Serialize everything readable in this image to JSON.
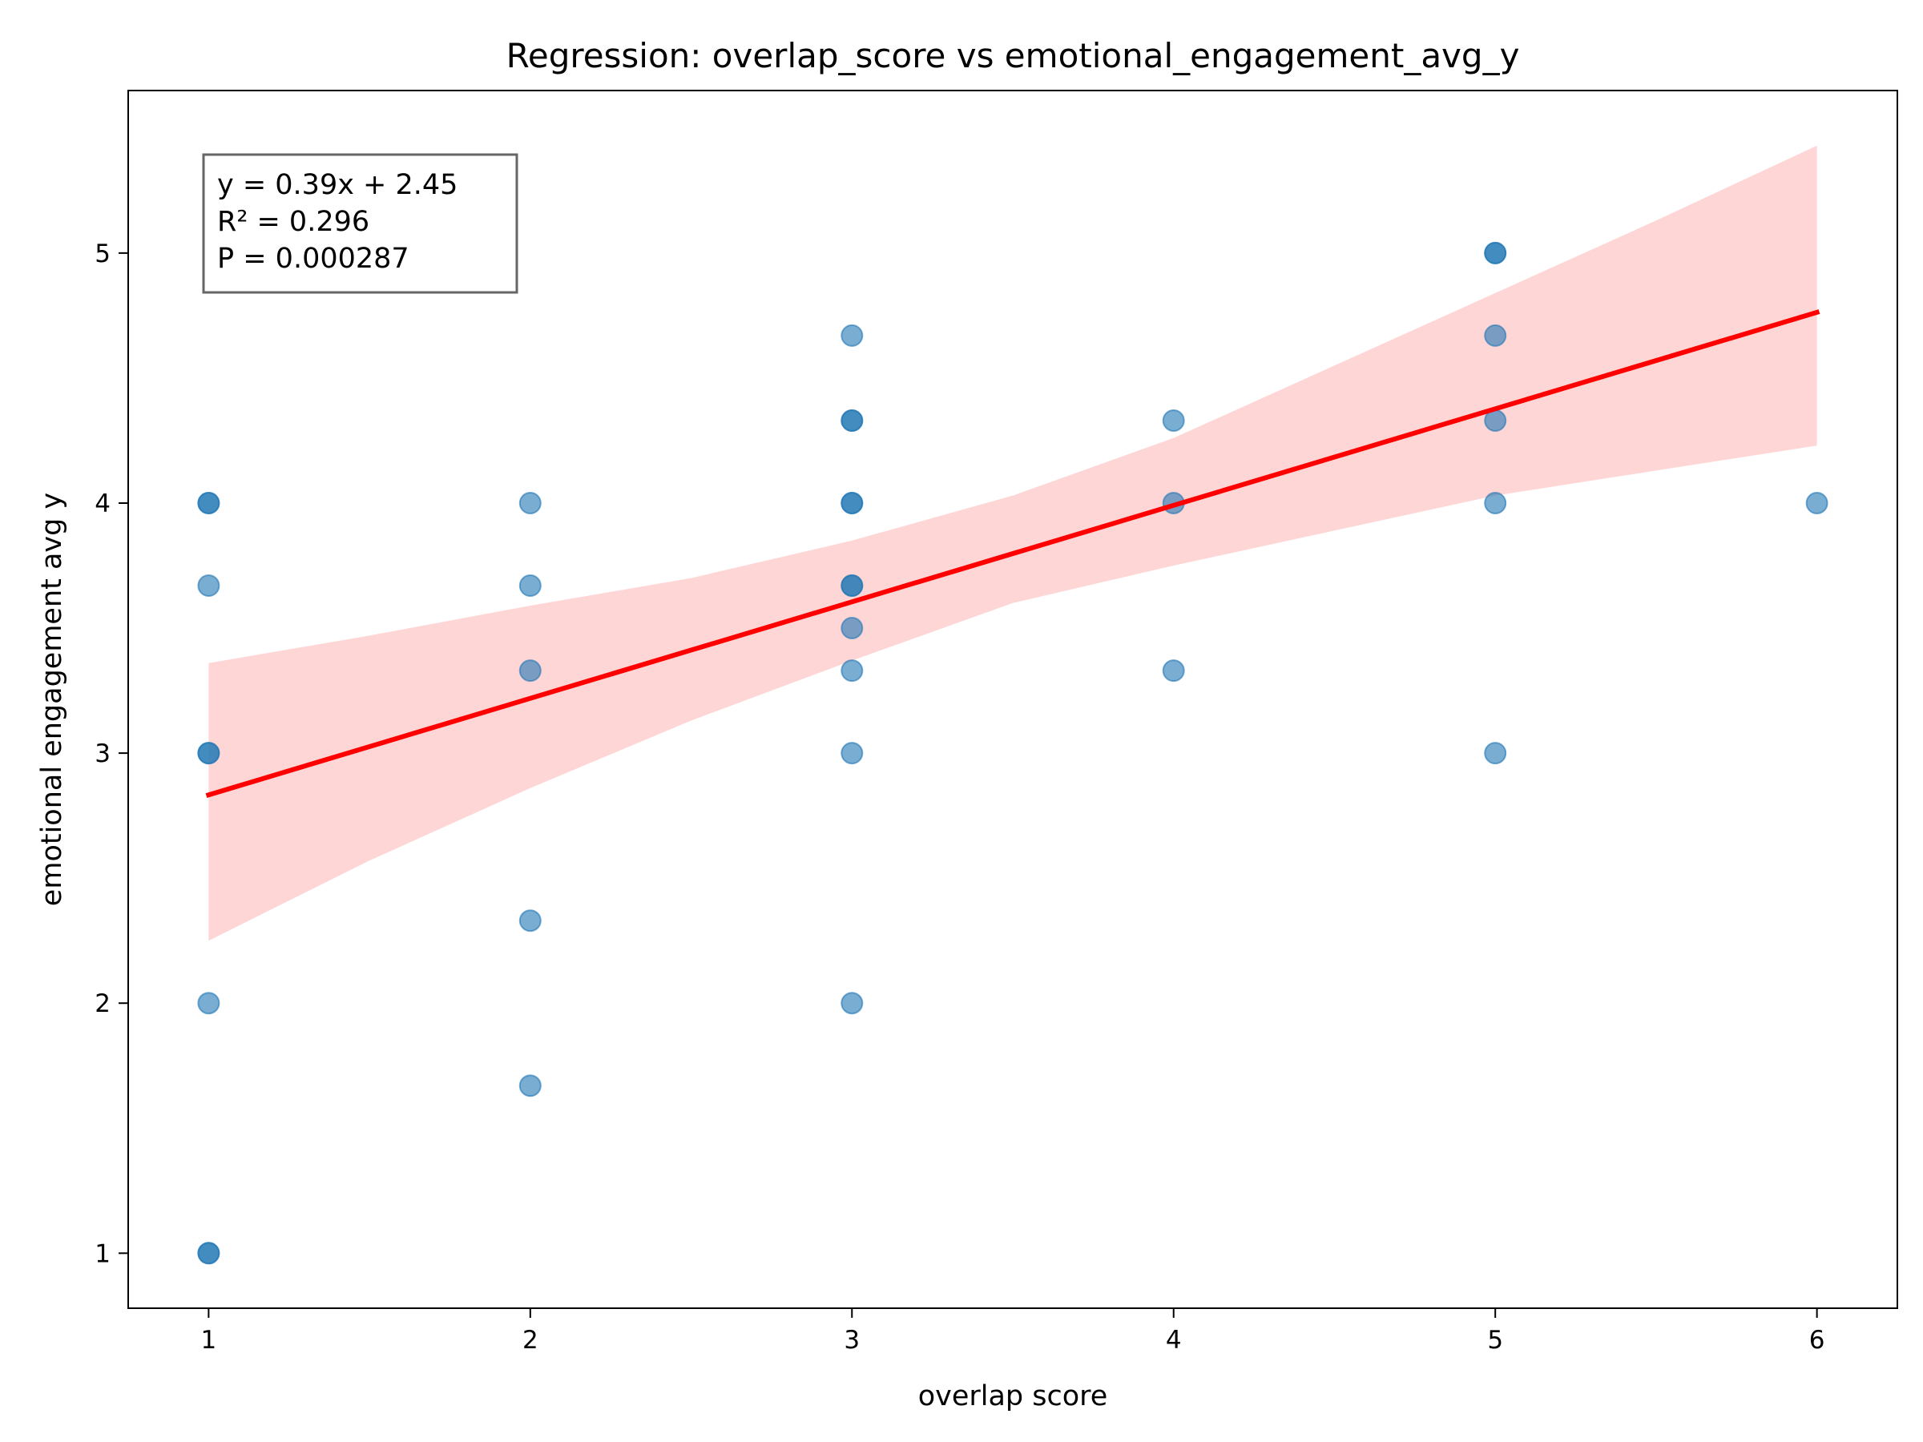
{
  "chart_data": {
    "type": "scatter",
    "title": "Regression: overlap_score vs emotional_engagement_avg_y",
    "xlabel": "overlap score",
    "ylabel": "emotional engagement avg y",
    "xlim": [
      0.75,
      6.25
    ],
    "ylim": [
      0.78,
      5.65
    ],
    "xticks": [
      1,
      2,
      3,
      4,
      5,
      6
    ],
    "yticks": [
      1,
      2,
      3,
      4,
      5
    ],
    "grid": false,
    "colors": {
      "points": "#1f77b4",
      "fit_line": "#ff0000",
      "ci_band": "#ffd6d6"
    },
    "points": [
      {
        "x": 1,
        "y": 1
      },
      {
        "x": 1,
        "y": 1
      },
      {
        "x": 1,
        "y": 2
      },
      {
        "x": 1,
        "y": 3
      },
      {
        "x": 1,
        "y": 3
      },
      {
        "x": 1,
        "y": 3.67
      },
      {
        "x": 1,
        "y": 4
      },
      {
        "x": 1,
        "y": 4
      },
      {
        "x": 2,
        "y": 1.67
      },
      {
        "x": 2,
        "y": 2.33
      },
      {
        "x": 2,
        "y": 3.33
      },
      {
        "x": 2,
        "y": 3.67
      },
      {
        "x": 2,
        "y": 4
      },
      {
        "x": 3,
        "y": 2
      },
      {
        "x": 3,
        "y": 3
      },
      {
        "x": 3,
        "y": 3.33
      },
      {
        "x": 3,
        "y": 3.5
      },
      {
        "x": 3,
        "y": 3.67
      },
      {
        "x": 3,
        "y": 3.67
      },
      {
        "x": 3,
        "y": 4
      },
      {
        "x": 3,
        "y": 4
      },
      {
        "x": 3,
        "y": 4.33
      },
      {
        "x": 3,
        "y": 4.33
      },
      {
        "x": 3,
        "y": 4.67
      },
      {
        "x": 4,
        "y": 3.33
      },
      {
        "x": 4,
        "y": 4
      },
      {
        "x": 4,
        "y": 4.33
      },
      {
        "x": 5,
        "y": 3
      },
      {
        "x": 5,
        "y": 4
      },
      {
        "x": 5,
        "y": 4.33
      },
      {
        "x": 5,
        "y": 4.67
      },
      {
        "x": 5,
        "y": 5
      },
      {
        "x": 5,
        "y": 5
      },
      {
        "x": 6,
        "y": 4
      }
    ],
    "regression": {
      "slope": 0.386,
      "intercept": 2.447
    },
    "confidence_band": [
      {
        "x": 1,
        "lower": 2.25,
        "upper": 3.36
      },
      {
        "x": 1.5,
        "lower": 2.57,
        "upper": 3.47
      },
      {
        "x": 2,
        "lower": 2.86,
        "upper": 3.59
      },
      {
        "x": 2.5,
        "lower": 3.13,
        "upper": 3.7
      },
      {
        "x": 3,
        "lower": 3.37,
        "upper": 3.85
      },
      {
        "x": 3.5,
        "lower": 3.6,
        "upper": 4.03
      },
      {
        "x": 4,
        "lower": 3.75,
        "upper": 4.26
      },
      {
        "x": 4.5,
        "lower": 3.89,
        "upper": 4.55
      },
      {
        "x": 5,
        "lower": 4.03,
        "upper": 4.84
      },
      {
        "x": 5.5,
        "lower": 4.13,
        "upper": 5.13
      },
      {
        "x": 6,
        "lower": 4.23,
        "upper": 5.43
      }
    ],
    "annotation": {
      "lines": [
        "y = 0.39x + 2.45",
        "R² = 0.296",
        "P = 0.000287"
      ],
      "position": "top-left"
    }
  }
}
